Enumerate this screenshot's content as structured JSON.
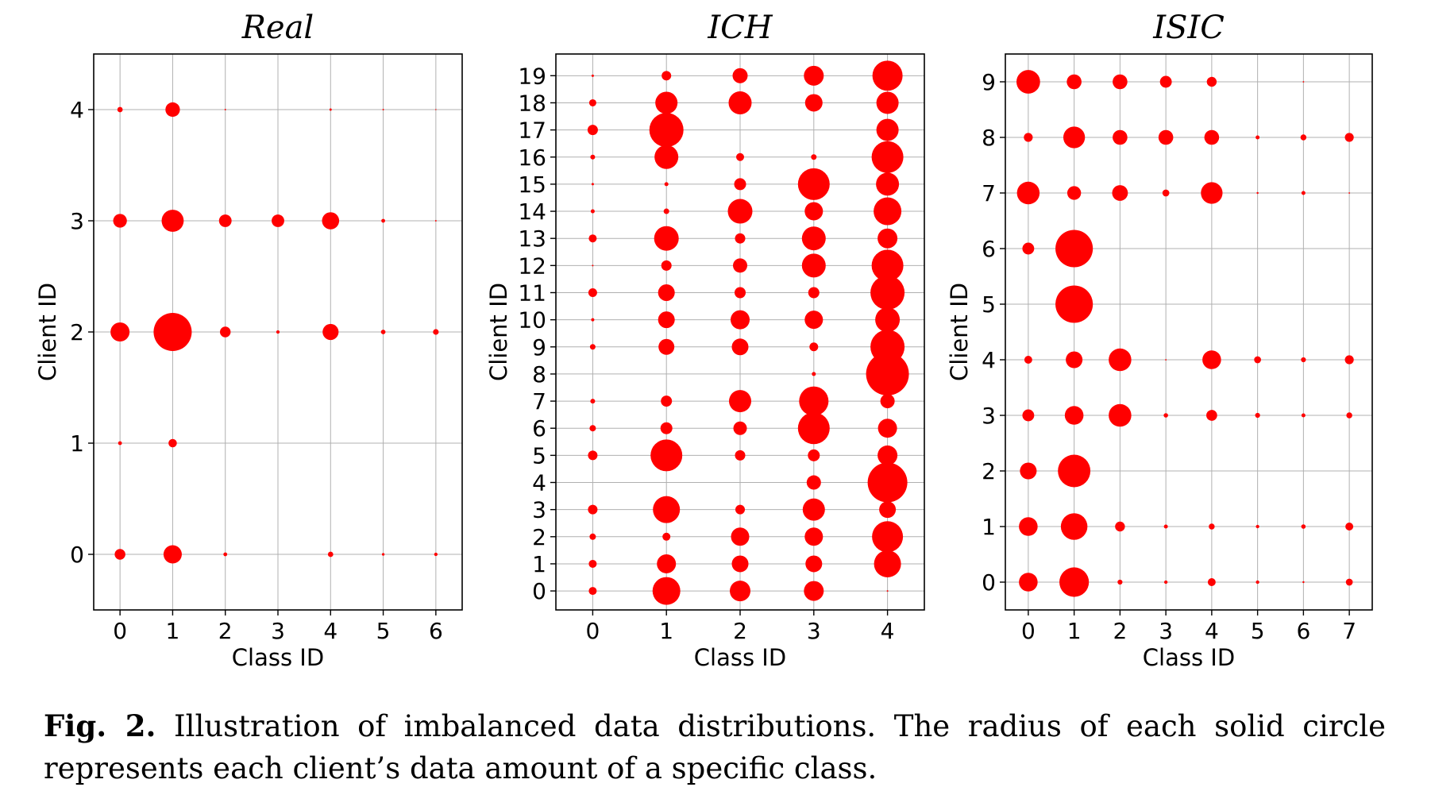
{
  "caption": {
    "label": "Fig. 2.",
    "text": "Illustration of imbalanced data distributions. The radius of each solid circle represents each client’s data amount of a specific class."
  },
  "colors": {
    "marker": "#ff0000",
    "grid": "#b0b0b0",
    "frame": "#000000"
  },
  "chart_data": [
    {
      "type": "scatter",
      "title": "Real",
      "xlabel": "Class ID",
      "ylabel": "Client ID",
      "xticks": [
        0,
        1,
        2,
        3,
        4,
        5,
        6
      ],
      "yticks": [
        0,
        1,
        2,
        3,
        4
      ],
      "xlim": [
        -0.5,
        6.5
      ],
      "ylim": [
        -0.5,
        4.5
      ],
      "grid": true,
      "size_encoding": "radius proportional to client data amount per class (relative, 0-1)",
      "points": [
        {
          "x": 0,
          "y": 0,
          "r": 0.28
        },
        {
          "x": 1,
          "y": 0,
          "r": 0.48
        },
        {
          "x": 2,
          "y": 0,
          "r": 0.1
        },
        {
          "x": 4,
          "y": 0,
          "r": 0.14
        },
        {
          "x": 5,
          "y": 0,
          "r": 0.07
        },
        {
          "x": 6,
          "y": 0,
          "r": 0.09
        },
        {
          "x": 0,
          "y": 1,
          "r": 0.1
        },
        {
          "x": 1,
          "y": 1,
          "r": 0.22
        },
        {
          "x": 0,
          "y": 2,
          "r": 0.5
        },
        {
          "x": 1,
          "y": 2,
          "r": 1.0
        },
        {
          "x": 2,
          "y": 2,
          "r": 0.28
        },
        {
          "x": 3,
          "y": 2,
          "r": 0.09
        },
        {
          "x": 4,
          "y": 2,
          "r": 0.42
        },
        {
          "x": 5,
          "y": 2,
          "r": 0.12
        },
        {
          "x": 6,
          "y": 2,
          "r": 0.15
        },
        {
          "x": 0,
          "y": 3,
          "r": 0.36
        },
        {
          "x": 1,
          "y": 3,
          "r": 0.58
        },
        {
          "x": 2,
          "y": 3,
          "r": 0.33
        },
        {
          "x": 3,
          "y": 3,
          "r": 0.33
        },
        {
          "x": 4,
          "y": 3,
          "r": 0.45
        },
        {
          "x": 5,
          "y": 3,
          "r": 0.1
        },
        {
          "x": 6,
          "y": 3,
          "r": 0.04
        },
        {
          "x": 0,
          "y": 4,
          "r": 0.14
        },
        {
          "x": 1,
          "y": 4,
          "r": 0.38
        },
        {
          "x": 2,
          "y": 4,
          "r": 0.04
        },
        {
          "x": 4,
          "y": 4,
          "r": 0.06
        },
        {
          "x": 5,
          "y": 4,
          "r": 0.04
        },
        {
          "x": 6,
          "y": 4,
          "r": 0.03
        }
      ]
    },
    {
      "type": "scatter",
      "title": "ICH",
      "xlabel": "Class ID",
      "ylabel": "Client ID",
      "xticks": [
        0,
        1,
        2,
        3,
        4
      ],
      "yticks": [
        0,
        1,
        2,
        3,
        4,
        5,
        6,
        7,
        8,
        9,
        10,
        11,
        12,
        13,
        14,
        15,
        16,
        17,
        18,
        19
      ],
      "xlim": [
        -0.5,
        4.5
      ],
      "ylim": [
        -0.7,
        19.8
      ],
      "grid": true,
      "size_encoding": "radius proportional to client data amount per class (relative, 0-1)",
      "points": [
        {
          "x": 0,
          "y": 0,
          "r": 0.2
        },
        {
          "x": 1,
          "y": 0,
          "r": 0.7
        },
        {
          "x": 2,
          "y": 0,
          "r": 0.52
        },
        {
          "x": 3,
          "y": 0,
          "r": 0.5
        },
        {
          "x": 4,
          "y": 0,
          "r": 0.04
        },
        {
          "x": 0,
          "y": 1,
          "r": 0.2
        },
        {
          "x": 1,
          "y": 1,
          "r": 0.48
        },
        {
          "x": 2,
          "y": 1,
          "r": 0.42
        },
        {
          "x": 3,
          "y": 1,
          "r": 0.42
        },
        {
          "x": 4,
          "y": 1,
          "r": 0.68
        },
        {
          "x": 0,
          "y": 2,
          "r": 0.16
        },
        {
          "x": 1,
          "y": 2,
          "r": 0.2
        },
        {
          "x": 2,
          "y": 2,
          "r": 0.46
        },
        {
          "x": 3,
          "y": 2,
          "r": 0.46
        },
        {
          "x": 4,
          "y": 2,
          "r": 0.78
        },
        {
          "x": 0,
          "y": 3,
          "r": 0.24
        },
        {
          "x": 1,
          "y": 3,
          "r": 0.68
        },
        {
          "x": 2,
          "y": 3,
          "r": 0.24
        },
        {
          "x": 3,
          "y": 3,
          "r": 0.56
        },
        {
          "x": 4,
          "y": 3,
          "r": 0.42
        },
        {
          "x": 0,
          "y": 4,
          "r": 0.0
        },
        {
          "x": 3,
          "y": 4,
          "r": 0.36
        },
        {
          "x": 4,
          "y": 4,
          "r": 1.0
        },
        {
          "x": 0,
          "y": 5,
          "r": 0.24
        },
        {
          "x": 1,
          "y": 5,
          "r": 0.8
        },
        {
          "x": 2,
          "y": 5,
          "r": 0.26
        },
        {
          "x": 3,
          "y": 5,
          "r": 0.3
        },
        {
          "x": 4,
          "y": 5,
          "r": 0.5
        },
        {
          "x": 0,
          "y": 6,
          "r": 0.16
        },
        {
          "x": 1,
          "y": 6,
          "r": 0.3
        },
        {
          "x": 2,
          "y": 6,
          "r": 0.34
        },
        {
          "x": 3,
          "y": 6,
          "r": 0.8
        },
        {
          "x": 4,
          "y": 6,
          "r": 0.48
        },
        {
          "x": 0,
          "y": 7,
          "r": 0.12
        },
        {
          "x": 1,
          "y": 7,
          "r": 0.28
        },
        {
          "x": 2,
          "y": 7,
          "r": 0.56
        },
        {
          "x": 3,
          "y": 7,
          "r": 0.74
        },
        {
          "x": 4,
          "y": 7,
          "r": 0.36
        },
        {
          "x": 3,
          "y": 8,
          "r": 0.1
        },
        {
          "x": 4,
          "y": 8,
          "r": 1.08
        },
        {
          "x": 0,
          "y": 9,
          "r": 0.14
        },
        {
          "x": 1,
          "y": 9,
          "r": 0.4
        },
        {
          "x": 2,
          "y": 9,
          "r": 0.42
        },
        {
          "x": 3,
          "y": 9,
          "r": 0.22
        },
        {
          "x": 4,
          "y": 9,
          "r": 0.86
        },
        {
          "x": 0,
          "y": 10,
          "r": 0.08
        },
        {
          "x": 1,
          "y": 10,
          "r": 0.42
        },
        {
          "x": 2,
          "y": 10,
          "r": 0.48
        },
        {
          "x": 3,
          "y": 10,
          "r": 0.46
        },
        {
          "x": 4,
          "y": 10,
          "r": 0.62
        },
        {
          "x": 0,
          "y": 11,
          "r": 0.22
        },
        {
          "x": 1,
          "y": 11,
          "r": 0.42
        },
        {
          "x": 2,
          "y": 11,
          "r": 0.28
        },
        {
          "x": 3,
          "y": 11,
          "r": 0.28
        },
        {
          "x": 4,
          "y": 11,
          "r": 0.86
        },
        {
          "x": 0,
          "y": 12,
          "r": 0.04
        },
        {
          "x": 1,
          "y": 12,
          "r": 0.26
        },
        {
          "x": 2,
          "y": 12,
          "r": 0.36
        },
        {
          "x": 3,
          "y": 12,
          "r": 0.6
        },
        {
          "x": 4,
          "y": 12,
          "r": 0.8
        },
        {
          "x": 0,
          "y": 13,
          "r": 0.2
        },
        {
          "x": 1,
          "y": 13,
          "r": 0.62
        },
        {
          "x": 2,
          "y": 13,
          "r": 0.26
        },
        {
          "x": 3,
          "y": 13,
          "r": 0.6
        },
        {
          "x": 4,
          "y": 13,
          "r": 0.5
        },
        {
          "x": 0,
          "y": 14,
          "r": 0.1
        },
        {
          "x": 1,
          "y": 14,
          "r": 0.14
        },
        {
          "x": 2,
          "y": 14,
          "r": 0.62
        },
        {
          "x": 3,
          "y": 14,
          "r": 0.46
        },
        {
          "x": 4,
          "y": 14,
          "r": 0.7
        },
        {
          "x": 0,
          "y": 15,
          "r": 0.06
        },
        {
          "x": 1,
          "y": 15,
          "r": 0.1
        },
        {
          "x": 2,
          "y": 15,
          "r": 0.3
        },
        {
          "x": 3,
          "y": 15,
          "r": 0.8
        },
        {
          "x": 4,
          "y": 15,
          "r": 0.58
        },
        {
          "x": 0,
          "y": 16,
          "r": 0.12
        },
        {
          "x": 1,
          "y": 16,
          "r": 0.6
        },
        {
          "x": 2,
          "y": 16,
          "r": 0.2
        },
        {
          "x": 3,
          "y": 16,
          "r": 0.14
        },
        {
          "x": 4,
          "y": 16,
          "r": 0.8
        },
        {
          "x": 0,
          "y": 17,
          "r": 0.26
        },
        {
          "x": 1,
          "y": 17,
          "r": 0.86
        },
        {
          "x": 4,
          "y": 17,
          "r": 0.56
        },
        {
          "x": 0,
          "y": 18,
          "r": 0.18
        },
        {
          "x": 1,
          "y": 18,
          "r": 0.56
        },
        {
          "x": 2,
          "y": 18,
          "r": 0.58
        },
        {
          "x": 3,
          "y": 18,
          "r": 0.44
        },
        {
          "x": 4,
          "y": 18,
          "r": 0.56
        },
        {
          "x": 0,
          "y": 19,
          "r": 0.06
        },
        {
          "x": 1,
          "y": 19,
          "r": 0.24
        },
        {
          "x": 2,
          "y": 19,
          "r": 0.38
        },
        {
          "x": 3,
          "y": 19,
          "r": 0.5
        },
        {
          "x": 4,
          "y": 19,
          "r": 0.76
        }
      ]
    },
    {
      "type": "scatter",
      "title": "ISIC",
      "xlabel": "Class ID",
      "ylabel": "Client ID",
      "xticks": [
        0,
        1,
        2,
        3,
        4,
        5,
        6,
        7
      ],
      "yticks": [
        0,
        1,
        2,
        3,
        4,
        5,
        6,
        7,
        8,
        9
      ],
      "xlim": [
        -0.5,
        7.5
      ],
      "ylim": [
        -0.5,
        9.5
      ],
      "grid": true,
      "size_encoding": "radius proportional to client data amount per class (relative, 0-1)",
      "points": [
        {
          "x": 0,
          "y": 0,
          "r": 0.38
        },
        {
          "x": 1,
          "y": 0,
          "r": 0.6
        },
        {
          "x": 2,
          "y": 0,
          "r": 0.1
        },
        {
          "x": 3,
          "y": 0,
          "r": 0.07
        },
        {
          "x": 4,
          "y": 0,
          "r": 0.16
        },
        {
          "x": 5,
          "y": 0,
          "r": 0.07
        },
        {
          "x": 6,
          "y": 0,
          "r": 0.04
        },
        {
          "x": 7,
          "y": 0,
          "r": 0.14
        },
        {
          "x": 0,
          "y": 1,
          "r": 0.38
        },
        {
          "x": 1,
          "y": 1,
          "r": 0.54
        },
        {
          "x": 2,
          "y": 1,
          "r": 0.2
        },
        {
          "x": 3,
          "y": 1,
          "r": 0.08
        },
        {
          "x": 4,
          "y": 1,
          "r": 0.12
        },
        {
          "x": 5,
          "y": 1,
          "r": 0.07
        },
        {
          "x": 6,
          "y": 1,
          "r": 0.09
        },
        {
          "x": 7,
          "y": 1,
          "r": 0.16
        },
        {
          "x": 0,
          "y": 2,
          "r": 0.34
        },
        {
          "x": 1,
          "y": 2,
          "r": 0.66
        },
        {
          "x": 0,
          "y": 3,
          "r": 0.24
        },
        {
          "x": 1,
          "y": 3,
          "r": 0.38
        },
        {
          "x": 2,
          "y": 3,
          "r": 0.46
        },
        {
          "x": 3,
          "y": 3,
          "r": 0.09
        },
        {
          "x": 4,
          "y": 3,
          "r": 0.22
        },
        {
          "x": 5,
          "y": 3,
          "r": 0.1
        },
        {
          "x": 6,
          "y": 3,
          "r": 0.08
        },
        {
          "x": 7,
          "y": 3,
          "r": 0.12
        },
        {
          "x": 0,
          "y": 4,
          "r": 0.16
        },
        {
          "x": 1,
          "y": 4,
          "r": 0.34
        },
        {
          "x": 2,
          "y": 4,
          "r": 0.46
        },
        {
          "x": 3,
          "y": 4,
          "r": 0.03
        },
        {
          "x": 4,
          "y": 4,
          "r": 0.38
        },
        {
          "x": 5,
          "y": 4,
          "r": 0.14
        },
        {
          "x": 6,
          "y": 4,
          "r": 0.1
        },
        {
          "x": 7,
          "y": 4,
          "r": 0.18
        },
        {
          "x": 1,
          "y": 5,
          "r": 0.76
        },
        {
          "x": 0,
          "y": 6,
          "r": 0.24
        },
        {
          "x": 1,
          "y": 6,
          "r": 0.76
        },
        {
          "x": 0,
          "y": 7,
          "r": 0.46
        },
        {
          "x": 1,
          "y": 7,
          "r": 0.28
        },
        {
          "x": 2,
          "y": 7,
          "r": 0.32
        },
        {
          "x": 3,
          "y": 7,
          "r": 0.14
        },
        {
          "x": 4,
          "y": 7,
          "r": 0.44
        },
        {
          "x": 5,
          "y": 7,
          "r": 0.04
        },
        {
          "x": 6,
          "y": 7,
          "r": 0.08
        },
        {
          "x": 7,
          "y": 7,
          "r": 0.03
        },
        {
          "x": 0,
          "y": 8,
          "r": 0.18
        },
        {
          "x": 1,
          "y": 8,
          "r": 0.44
        },
        {
          "x": 2,
          "y": 8,
          "r": 0.3
        },
        {
          "x": 3,
          "y": 8,
          "r": 0.3
        },
        {
          "x": 4,
          "y": 8,
          "r": 0.3
        },
        {
          "x": 5,
          "y": 8,
          "r": 0.08
        },
        {
          "x": 6,
          "y": 8,
          "r": 0.12
        },
        {
          "x": 7,
          "y": 8,
          "r": 0.18
        },
        {
          "x": 0,
          "y": 9,
          "r": 0.48
        },
        {
          "x": 1,
          "y": 9,
          "r": 0.3
        },
        {
          "x": 2,
          "y": 9,
          "r": 0.3
        },
        {
          "x": 3,
          "y": 9,
          "r": 0.24
        },
        {
          "x": 4,
          "y": 9,
          "r": 0.2
        },
        {
          "x": 6,
          "y": 9,
          "r": 0.03
        }
      ]
    }
  ]
}
